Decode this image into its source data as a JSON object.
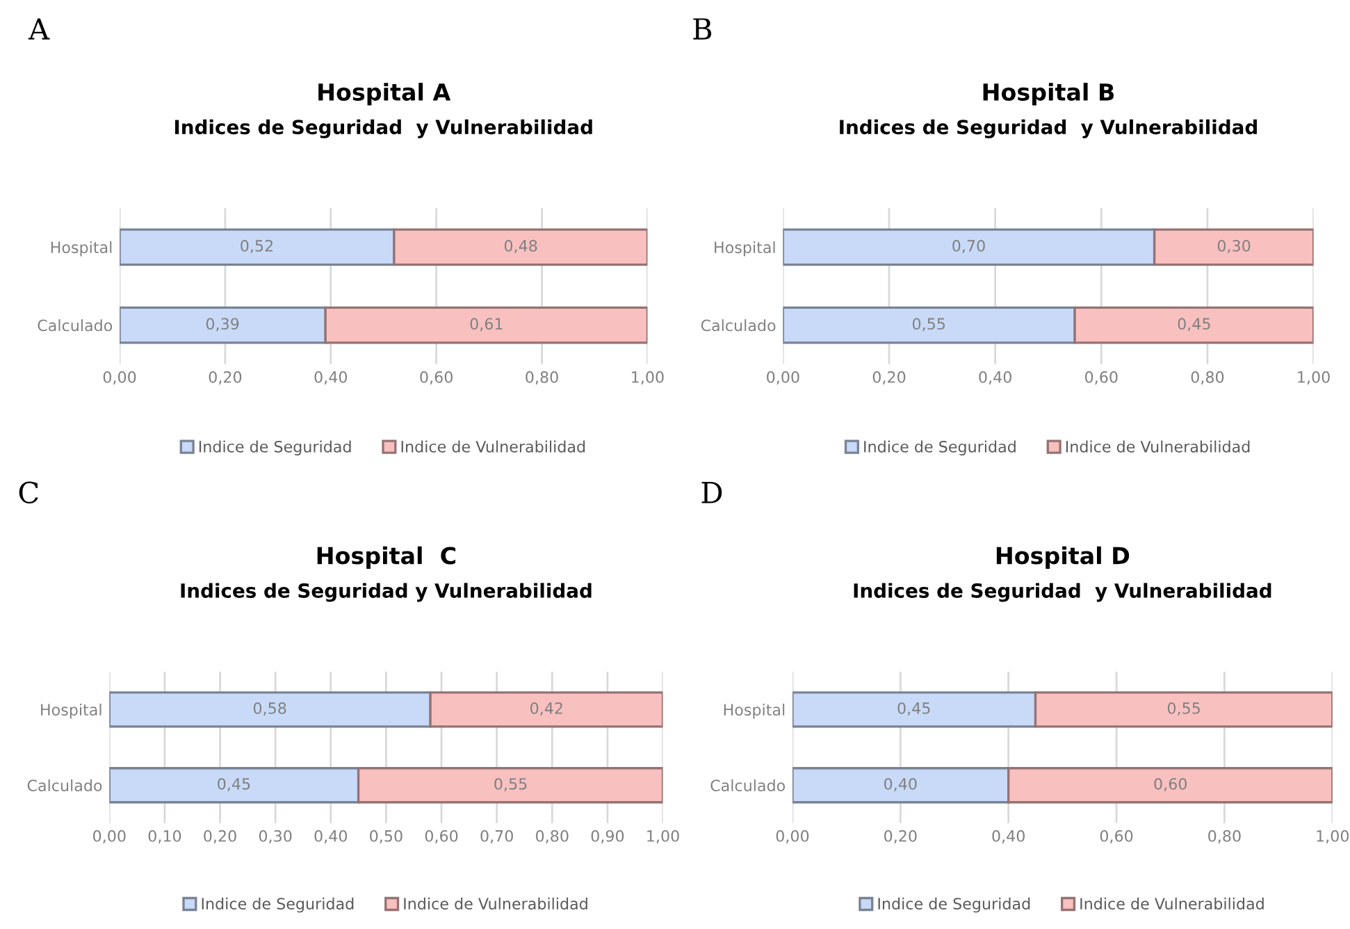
{
  "chart_data": [
    {
      "type": "bar",
      "orientation": "horizontal",
      "stacked": true,
      "title": "Hospital A",
      "subtitle": "Indices de Seguridad  y Vulnerabilidad",
      "annotations": [
        "A"
      ],
      "categories": [
        "Hospital",
        "Calculado"
      ],
      "series": [
        {
          "name": "Indice de Seguridad",
          "color": "#c9daf8",
          "values": [
            0.52,
            0.39
          ],
          "value_labels": [
            "0,52",
            "0,39"
          ]
        },
        {
          "name": "Indice de Vulnerabilidad",
          "color": "#f9c0c0",
          "values": [
            0.48,
            0.61
          ],
          "value_labels": [
            "0,48",
            "0,61"
          ]
        }
      ],
      "xlim": [
        0,
        1
      ],
      "xticks": [
        {
          "value": 0,
          "label": "0,00"
        },
        {
          "value": 0.2,
          "label": "0,20"
        },
        {
          "value": 0.4,
          "label": "0,40"
        },
        {
          "value": 0.6,
          "label": "0,60"
        },
        {
          "value": 0.8,
          "label": "0,80"
        },
        {
          "value": 1,
          "label": "1,00"
        }
      ],
      "grid": "x",
      "legend": "bottom"
    },
    {
      "type": "bar",
      "orientation": "horizontal",
      "stacked": true,
      "title": "Hospital B",
      "subtitle": "Indices de Seguridad  y Vulnerabilidad",
      "annotations": [
        "B"
      ],
      "categories": [
        "Hospital",
        "Calculado"
      ],
      "series": [
        {
          "name": "Indice de Seguridad",
          "color": "#c9daf8",
          "values": [
            0.7,
            0.55
          ],
          "value_labels": [
            "0,70",
            "0,55"
          ]
        },
        {
          "name": "Indice de Vulnerabilidad",
          "color": "#f9c0c0",
          "values": [
            0.3,
            0.45
          ],
          "value_labels": [
            "0,30",
            "0,45"
          ]
        }
      ],
      "xlim": [
        0,
        1
      ],
      "xticks": [
        {
          "value": 0,
          "label": "0,00"
        },
        {
          "value": 0.2,
          "label": "0,20"
        },
        {
          "value": 0.4,
          "label": "0,40"
        },
        {
          "value": 0.6,
          "label": "0,60"
        },
        {
          "value": 0.8,
          "label": "0,80"
        },
        {
          "value": 1,
          "label": "1,00"
        }
      ],
      "grid": "x",
      "legend": "bottom"
    },
    {
      "type": "bar",
      "orientation": "horizontal",
      "stacked": true,
      "title": "Hospital  C",
      "subtitle": "Indices de Seguridad y Vulnerabilidad",
      "annotations": [
        "C"
      ],
      "categories": [
        "Hospital",
        "Calculado"
      ],
      "series": [
        {
          "name": "Indice de Seguridad",
          "color": "#c9daf8",
          "values": [
            0.58,
            0.45
          ],
          "value_labels": [
            "0,58",
            "0,45"
          ]
        },
        {
          "name": "Indice de Vulnerabilidad",
          "color": "#f9c0c0",
          "values": [
            0.42,
            0.55
          ],
          "value_labels": [
            "0,42",
            "0,55"
          ]
        }
      ],
      "xlim": [
        0,
        1
      ],
      "xticks": [
        {
          "value": 0,
          "label": "0,00"
        },
        {
          "value": 0.1,
          "label": "0,10"
        },
        {
          "value": 0.2,
          "label": "0,20"
        },
        {
          "value": 0.3,
          "label": "0,30"
        },
        {
          "value": 0.4,
          "label": "0,40"
        },
        {
          "value": 0.5,
          "label": "0,50"
        },
        {
          "value": 0.6,
          "label": "0,60"
        },
        {
          "value": 0.7,
          "label": "0,70"
        },
        {
          "value": 0.8,
          "label": "0,80"
        },
        {
          "value": 0.9,
          "label": "0,90"
        },
        {
          "value": 1,
          "label": "1,00"
        }
      ],
      "grid": "x",
      "legend": "bottom"
    },
    {
      "type": "bar",
      "orientation": "horizontal",
      "stacked": true,
      "title": "Hospital D",
      "subtitle": "Indices de Seguridad  y Vulnerabilidad",
      "annotations": [
        "D"
      ],
      "categories": [
        "Hospital",
        "Calculado"
      ],
      "series": [
        {
          "name": "Indice de Seguridad",
          "color": "#c9daf8",
          "values": [
            0.45,
            0.4
          ],
          "value_labels": [
            "0,45",
            "0,40"
          ]
        },
        {
          "name": "Indice de Vulnerabilidad",
          "color": "#f9c0c0",
          "values": [
            0.55,
            0.6
          ],
          "value_labels": [
            "0,55",
            "0,60"
          ]
        }
      ],
      "xlim": [
        0,
        1
      ],
      "xticks": [
        {
          "value": 0,
          "label": "0,00"
        },
        {
          "value": 0.2,
          "label": "0,20"
        },
        {
          "value": 0.4,
          "label": "0,40"
        },
        {
          "value": 0.6,
          "label": "0,60"
        },
        {
          "value": 0.8,
          "label": "0,80"
        },
        {
          "value": 1,
          "label": "1,00"
        }
      ],
      "grid": "x",
      "legend": "bottom"
    }
  ]
}
